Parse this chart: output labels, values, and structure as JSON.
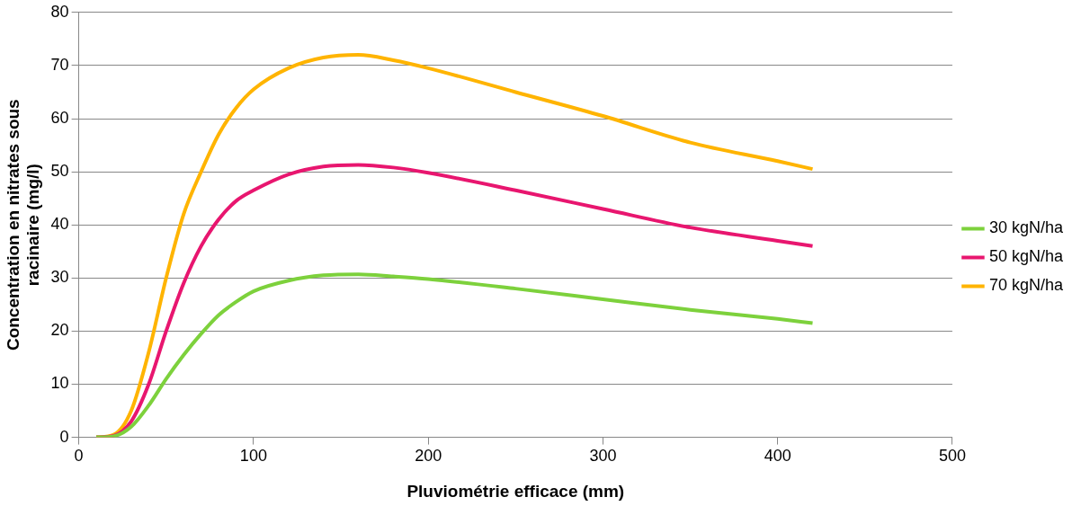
{
  "chart_data": {
    "type": "line",
    "xlabel": "Pluviométrie efficace (mm)",
    "ylabel": "Concentration en nitrates sous racinaire (mg/l)",
    "xlim": [
      0,
      500
    ],
    "xticks": [
      0,
      100,
      200,
      300,
      400,
      500
    ],
    "ylim": [
      0,
      80
    ],
    "yticks": [
      0,
      10,
      20,
      30,
      40,
      50,
      60,
      70,
      80
    ],
    "grid": "y",
    "legend": "right",
    "marker": "none",
    "line_style": "solid",
    "x": [
      10,
      20,
      30,
      40,
      50,
      60,
      70,
      80,
      90,
      100,
      120,
      140,
      160,
      180,
      200,
      250,
      300,
      350,
      400,
      420
    ],
    "series": [
      {
        "name": "30 kgN/ha",
        "color": "#7dd13c",
        "values": [
          0,
          0.2,
          2,
          6,
          11,
          15.5,
          19.5,
          23,
          25.5,
          27.5,
          29.5,
          30.5,
          30.7,
          30.3,
          29.8,
          28,
          26,
          24,
          22.3,
          21.5
        ]
      },
      {
        "name": "50 kgN/ha",
        "color": "#e8166f",
        "values": [
          0,
          0.3,
          3,
          10,
          20,
          29,
          36,
          41,
          44.5,
          46.5,
          49.5,
          51,
          51.3,
          50.8,
          49.8,
          46.5,
          43,
          39.5,
          37,
          36
        ]
      },
      {
        "name": "70 kgN/ha",
        "color": "#ffb400",
        "values": [
          0,
          0.5,
          5,
          16,
          30,
          42,
          50,
          57,
          62,
          65.5,
          69.5,
          71.5,
          72,
          71,
          69.5,
          65,
          60.5,
          55.5,
          52,
          50.5
        ]
      }
    ]
  }
}
